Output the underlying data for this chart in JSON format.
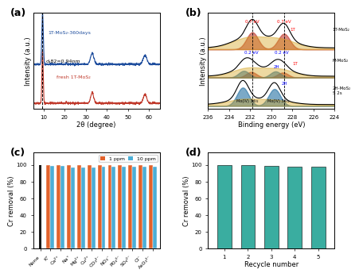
{
  "panel_a": {
    "label": "(a)",
    "xlabel": "2θ (degree)",
    "ylabel": "Intensity (a.u.)",
    "xmin": 5,
    "xmax": 65,
    "dashed_x": 9.5,
    "annotation": "dₐ82=0.94nm",
    "line1_label": "1T-MoS₂-360days",
    "line1_color": "#1f4e9e",
    "line2_label": "fresh 1T-MoS₂",
    "line2_color": "#c0392b"
  },
  "panel_b": {
    "label": "(b)",
    "xlabel": "Binding energy (eV)",
    "ylabel": "Intensity (a.u.)",
    "xmin": 224,
    "xmax": 236,
    "annotations_top": [
      "0.7 eV",
      "0.7 eV"
    ],
    "annotations_mid": [
      "0.2 eV",
      "0.2 eV"
    ],
    "labels_right": [
      "1T-MoS₂",
      "M-MoS₂",
      "2H-MoS₂\nS 2s"
    ],
    "labels_1t_2h": [
      "1T",
      "2H",
      "1T",
      "2H",
      "Mo(IV) 3d₅₂",
      "Mo(IV) 3d₃₂"
    ],
    "dashed_x1": 231.5,
    "dashed_x2": 228.5
  },
  "panel_c": {
    "label": "(c)",
    "xlabel": "",
    "ylabel": "Cr removal (%)",
    "ylim": [
      0,
      110
    ],
    "yticks": [
      0,
      20,
      40,
      60,
      80,
      100
    ],
    "categories": [
      "None",
      "K⁺",
      "Ca²⁺",
      "Na⁺",
      "Mg²⁺",
      "Cu²⁺",
      "CO₃²⁻",
      "NO₃⁻",
      "PO₄³⁻",
      "SO₄²⁻",
      "Cl⁻",
      "AsO₃³⁻"
    ],
    "values_1ppm": [
      99.8,
      99.5,
      99.5,
      99.5,
      99.5,
      99.5,
      99.5,
      99.5,
      99.5,
      99.5,
      99.5,
      99.5
    ],
    "values_10ppm": [
      0,
      99.0,
      99.0,
      97.0,
      97.0,
      97.0,
      97.5,
      97.5,
      97.5,
      97.5,
      97.5,
      97.5
    ],
    "none_color": "#1a1a1a",
    "color_1ppm": "#e2622b",
    "color_10ppm": "#4baed6",
    "legend_1ppm": "1 ppm",
    "legend_10ppm": "10 ppm"
  },
  "panel_d": {
    "label": "(d)",
    "xlabel": "Recycle number",
    "ylabel": "Cr removal (%)",
    "ylim": [
      0,
      110
    ],
    "yticks": [
      0,
      20,
      40,
      60,
      80,
      100
    ],
    "categories": [
      1,
      2,
      3,
      4,
      5
    ],
    "values": [
      99.5,
      99.5,
      99.0,
      98.0,
      98.0
    ],
    "bar_color": "#3aada0"
  }
}
